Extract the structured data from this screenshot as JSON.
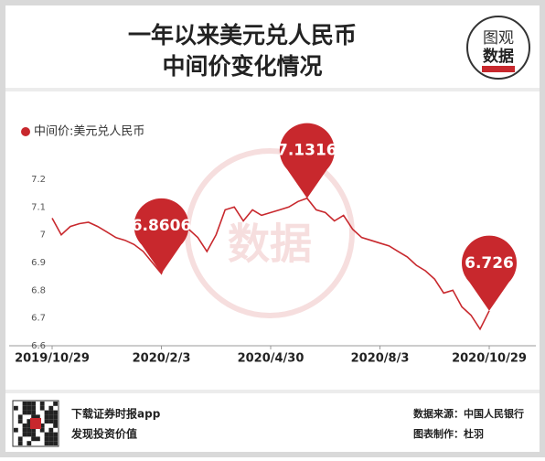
{
  "chart_data": {
    "type": "line",
    "title_lines": [
      "一年以来美元兑人民币",
      "中间价变化情况"
    ],
    "logo": [
      "图观",
      "数据"
    ],
    "watermark": "数据",
    "categories": [
      "2019/10/29",
      null,
      null,
      null,
      null,
      null,
      null,
      null,
      null,
      null,
      null,
      null,
      "2020/2/3",
      null,
      null,
      null,
      null,
      null,
      null,
      null,
      null,
      null,
      null,
      null,
      "2020/4/30",
      null,
      null,
      null,
      null,
      null,
      null,
      null,
      null,
      null,
      null,
      null,
      "2020/8/3",
      null,
      null,
      null,
      null,
      null,
      null,
      null,
      null,
      null,
      null,
      null,
      "2020/10/29"
    ],
    "series": [
      {
        "name": "中间价:美元兑人民币",
        "color": "#c8282d",
        "values": [
          7.06,
          7.0,
          7.03,
          7.04,
          7.045,
          7.03,
          7.01,
          6.99,
          6.98,
          6.965,
          6.94,
          6.9,
          6.8606,
          6.95,
          7.0,
          7.02,
          6.99,
          6.94,
          7.0,
          7.09,
          7.1,
          7.05,
          7.09,
          7.07,
          7.08,
          7.09,
          7.1,
          7.12,
          7.1316,
          7.09,
          7.08,
          7.05,
          7.07,
          7.02,
          6.99,
          6.98,
          6.97,
          6.96,
          6.94,
          6.92,
          6.89,
          6.87,
          6.84,
          6.79,
          6.8,
          6.74,
          6.71,
          6.66,
          6.726
        ],
        "value_labels": [
          null,
          null,
          null,
          null,
          null,
          null,
          null,
          null,
          null,
          null,
          null,
          null,
          "6.8606",
          null,
          null,
          null,
          null,
          null,
          null,
          null,
          null,
          null,
          null,
          null,
          null,
          null,
          null,
          null,
          "7.1316",
          null,
          null,
          null,
          null,
          null,
          null,
          null,
          null,
          null,
          null,
          null,
          null,
          null,
          null,
          null,
          null,
          null,
          null,
          null,
          "6.726"
        ]
      }
    ],
    "ylim": [
      6.6,
      7.2
    ],
    "yticks": [
      6.6,
      6.7,
      6.8,
      6.9,
      7,
      7.1,
      7.2
    ],
    "grid": false
  },
  "footer": {
    "left": [
      "下载证券时报app",
      "发现投资价值"
    ],
    "right": [
      "数据来源：中国人民银行",
      "图表制作：杜羽"
    ]
  }
}
